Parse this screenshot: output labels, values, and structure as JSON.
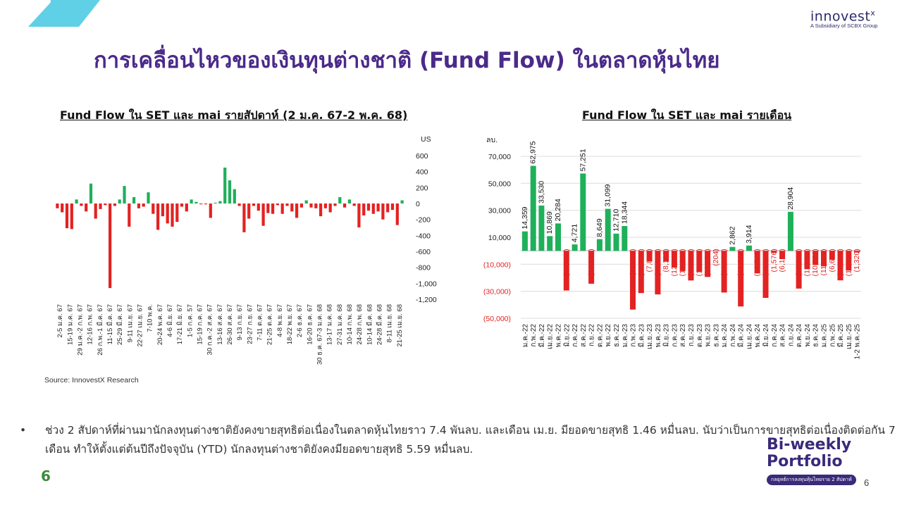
{
  "header": {
    "title": "การเคลื่อนไหวของเงินทุนต่างชาติ (Fund Flow) ในตลาดหุ้นไทย",
    "logo_text": "innovest",
    "logo_mark": "x",
    "logo_subtitle": "A Subsidiary of SCBX Group"
  },
  "colors": {
    "positive": "#1fb05a",
    "negative": "#e32222",
    "title": "#4b2a8a",
    "accent": "#5fd0e6"
  },
  "chart_data": [
    {
      "type": "bar",
      "title": "Fund Flow ใน SET และ mai รายสัปดาห์ (2 ม.ค. 67-2 พ.ค. 68)",
      "unit_label": "US",
      "ylim": [
        -1200,
        600
      ],
      "yticks": [
        600,
        400,
        200,
        0,
        -200,
        -400,
        -600,
        -800,
        -1000,
        -1200
      ],
      "ytick_labels": [
        "600",
        "400",
        "200",
        "0",
        "-200",
        "-400",
        "-600",
        "-800",
        "-1,000",
        "-1,200"
      ],
      "x_tick_labels": [
        "2-5 ม.ค. 67",
        "15-19 ม.ค. 67",
        "29 ม.ค.-2 ก.พ. 67",
        "12-16 ก.พ. 67",
        "26 ก.พ.-1 มี.ค. 67",
        "11-15 มี.ค. 67",
        "25-29 มี.ค. 67",
        "9-11 เม.ย. 67",
        "22-27 เม.ย. 67",
        "7-10 พ.ค.",
        "20-24 พ.ค. 67",
        "4-6 มิ.ย. 67",
        "17-21 มิ.ย. 67",
        "1-5 ก.ค. 57",
        "15-19 ก.ค. 67",
        "30 ก.ค.-2 ส.ค. 67",
        "13-16 ส.ค. 67",
        "26-30 ส.ค. 67",
        "9-13 ก.ย. 67",
        "23-27 ก.ย. 67",
        "7-11 ต.ค. 67",
        "21-25 ต.ค. 67",
        "4-8 พ.ย. 67",
        "18-22 พ.ย. 67",
        "2-6 ธ.ค. 67",
        "16-20 ธ.ค. 67",
        "30 ธ.ค. 67-3 ม.ค. 68",
        "13-17 ม.ค. 68",
        "27-31 ม.ค. 68",
        "10-14 ก.พ. 68",
        "24-28 ก.พ. 68",
        "10-14 มี.ค. 68",
        "24-28 มี.ค. 68",
        "8-11 เม.ย. 68",
        "21-25 เม.ย. 68"
      ],
      "values": [
        -60,
        -110,
        -310,
        -320,
        50,
        -30,
        -100,
        250,
        -190,
        -70,
        -20,
        -1060,
        -30,
        50,
        220,
        -290,
        80,
        -60,
        -40,
        140,
        -130,
        -330,
        -160,
        -250,
        -290,
        -230,
        -40,
        -100,
        50,
        20,
        -10,
        -10,
        -180,
        10,
        30,
        450,
        290,
        180,
        -30,
        -360,
        -190,
        -30,
        -90,
        -280,
        -120,
        -130,
        -20,
        -130,
        -30,
        -100,
        -180,
        -50,
        40,
        -50,
        -60,
        -160,
        -60,
        -110,
        -30,
        80,
        -50,
        50,
        -30,
        -300,
        -150,
        -90,
        -130,
        -100,
        -200,
        -110,
        -80,
        -270,
        40
      ]
    },
    {
      "type": "bar",
      "title": "Fund Flow ใน SET และ mai รายเดือน",
      "unit_label": "ลบ.",
      "ylim": [
        -50000,
        70000
      ],
      "yticks": [
        70000,
        50000,
        30000,
        10000,
        -10000,
        -30000,
        -50000
      ],
      "ytick_labels": [
        "70,000",
        "50,000",
        "30,000",
        "10,000",
        "(10,000)",
        "(30,000)",
        "(50,000)"
      ],
      "categories": [
        "ม.ค.-22",
        "ก.พ.-22",
        "มี.ค.-22",
        "เม.ย.-22",
        "พ.ค.-22",
        "มิ.ย.-22",
        "ก.ค.-22",
        "ส.ค.-22",
        "ก.ย.-22",
        "ต.ค.-22",
        "พ.ย.-22",
        "ธ.ค.-22",
        "ม.ค.-23",
        "ก.พ.-23",
        "มี.ค.-23",
        "เม.ย.-23",
        "พ.ค.-23",
        "มิ.ย.-23",
        "ก.ค.-23",
        "ส.ค.-23",
        "ก.ย.-23",
        "ต.ค.-23",
        "พ.ย.-23",
        "ธ.ค.-23",
        "ม.ค.-24",
        "ก.พ.-24",
        "มี.ค.-24",
        "เม.ย.-24",
        "พ.ค.-24",
        "มิ.ย.-24",
        "ก.ค.-24",
        "ส.ค.-24",
        "ก.ย.-24",
        "ต.ค.-24",
        "พ.ย.-24",
        "ธ.ค.-24",
        "ม.ค.-25",
        "ก.พ.-25",
        "มี.ค.-25",
        "เม.ย.-25",
        "1-2 พ.ค.-25"
      ],
      "values": [
        14359,
        62975,
        33530,
        10869,
        20284,
        -29387,
        4721,
        57251,
        -24366,
        8649,
        31099,
        12710,
        18344,
        -43511,
        -31308,
        -7885,
        -32276,
        -8102,
        -12409,
        -14949,
        -21973,
        -15737,
        -19379,
        -204,
        -30874,
        2862,
        -41214,
        3914,
        -16747,
        -34872,
        -1576,
        -6133,
        28904,
        -27968,
        -13597,
        -10552,
        -11504,
        -6623,
        -21852,
        -14588,
        -1320
      ],
      "value_labels": [
        "14,359",
        "62,975",
        "33,530",
        "10,869",
        "20,284",
        "(29,387)",
        "4,721",
        "57,251",
        "(24,366)",
        "8,649",
        "31,099",
        "12,710",
        "18,344",
        "(43,511)",
        "(31,308)",
        "(7,885)",
        "(32,276)",
        "(8,102)",
        "(12,409)",
        "(14,949)",
        "(21,973)",
        "(15,737)",
        "(19,379)",
        "(204)",
        "(30,874)",
        "2,862",
        "(41,214)",
        "3,914",
        "(16,747)",
        "(34,872)",
        "(1,576)",
        "(6,133)",
        "28,904",
        "(27,968)",
        "(13,597)",
        "(10,552)",
        "(11,504)",
        "(6,623)",
        "(21,852)",
        "(14,588)",
        "(1,320)"
      ]
    }
  ],
  "source": "Source: InnovestX Research",
  "bullet_text": "ช่วง 2 สัปดาห์ที่ผ่านมานักลงทุนต่างชาติยังคงขายสุทธิต่อเนื่องในตลาดหุ้นไทยราว 7.4 พันลบ. และเดือน เม.ย. มียอดขายสุทธิ 1.46 หมื่นลบ. นับว่าเป็นการขายสุทธิต่อเนื่องติดต่อกัน 7 เดือน ทำให้ตั้งแต่ต้นปีถึงปัจจุบัน (YTD) นักลงทุนต่างชาติยังคงมียอดขายสุทธิ 5.59 หมื่นลบ.",
  "page_number": "6",
  "page_number_small": "6",
  "badge": {
    "line1": "Bi-weekly",
    "line2": "Portfolio",
    "tagline": "กลยุทธ์การลงทุนหุ้นไทยราย 2 สัปดาห์"
  }
}
